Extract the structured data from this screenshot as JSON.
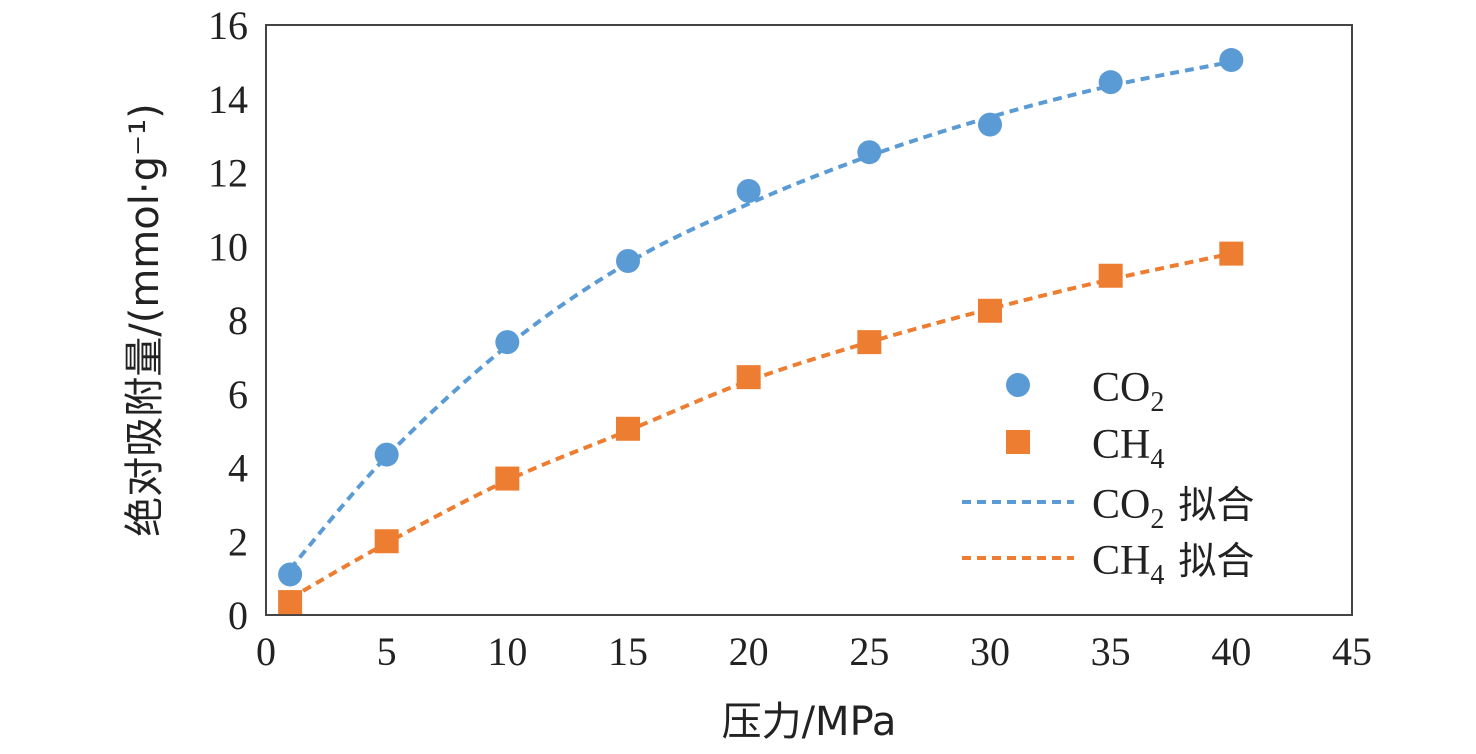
{
  "chart_data": {
    "type": "scatter",
    "title": "",
    "xlabel": "压力/MPa",
    "ylabel": "绝对吸附量/(mmol·g⁻¹)",
    "xlim": [
      0,
      45
    ],
    "ylim": [
      0,
      16
    ],
    "xticks": [
      0,
      5,
      10,
      15,
      20,
      25,
      30,
      35,
      40,
      45
    ],
    "yticks": [
      0,
      2,
      4,
      6,
      8,
      10,
      12,
      14,
      16
    ],
    "grid": false,
    "legend_position": "bottom-right",
    "series": [
      {
        "name": "CO2",
        "legend_label": {
          "base": "CO",
          "sub": "2",
          "suffix": ""
        },
        "kind": "markers",
        "marker": "circle",
        "color": "#5B9BD5",
        "x": [
          1,
          5,
          10,
          15,
          20,
          25,
          30,
          35,
          40
        ],
        "y": [
          1.1,
          4.35,
          7.4,
          9.6,
          11.5,
          12.55,
          13.3,
          14.45,
          15.05
        ]
      },
      {
        "name": "CH4",
        "legend_label": {
          "base": "CH",
          "sub": "4",
          "suffix": ""
        },
        "kind": "markers",
        "marker": "square",
        "color": "#ED7D31",
        "x": [
          1,
          5,
          10,
          15,
          20,
          25,
          30,
          35,
          40
        ],
        "y": [
          0.35,
          2.0,
          3.7,
          5.05,
          6.45,
          7.4,
          8.25,
          9.2,
          9.8
        ]
      },
      {
        "name": "CO2 拟合",
        "legend_label": {
          "base": "CO",
          "sub": "2",
          "suffix": "拟合"
        },
        "kind": "dashed-line",
        "color": "#5B9BD5",
        "x": [
          1,
          5,
          10,
          15,
          20,
          25,
          30,
          35,
          40
        ],
        "y": [
          1.25,
          4.3,
          7.3,
          9.55,
          11.15,
          12.45,
          13.5,
          14.35,
          15.0
        ]
      },
      {
        "name": "CH4 拟合",
        "legend_label": {
          "base": "CH",
          "sub": "4",
          "suffix": "拟合"
        },
        "kind": "dashed-line",
        "color": "#ED7D31",
        "x": [
          1,
          5,
          10,
          15,
          20,
          25,
          30,
          35,
          40
        ],
        "y": [
          0.45,
          1.95,
          3.65,
          5.0,
          6.35,
          7.4,
          8.3,
          9.1,
          9.8
        ]
      }
    ]
  }
}
